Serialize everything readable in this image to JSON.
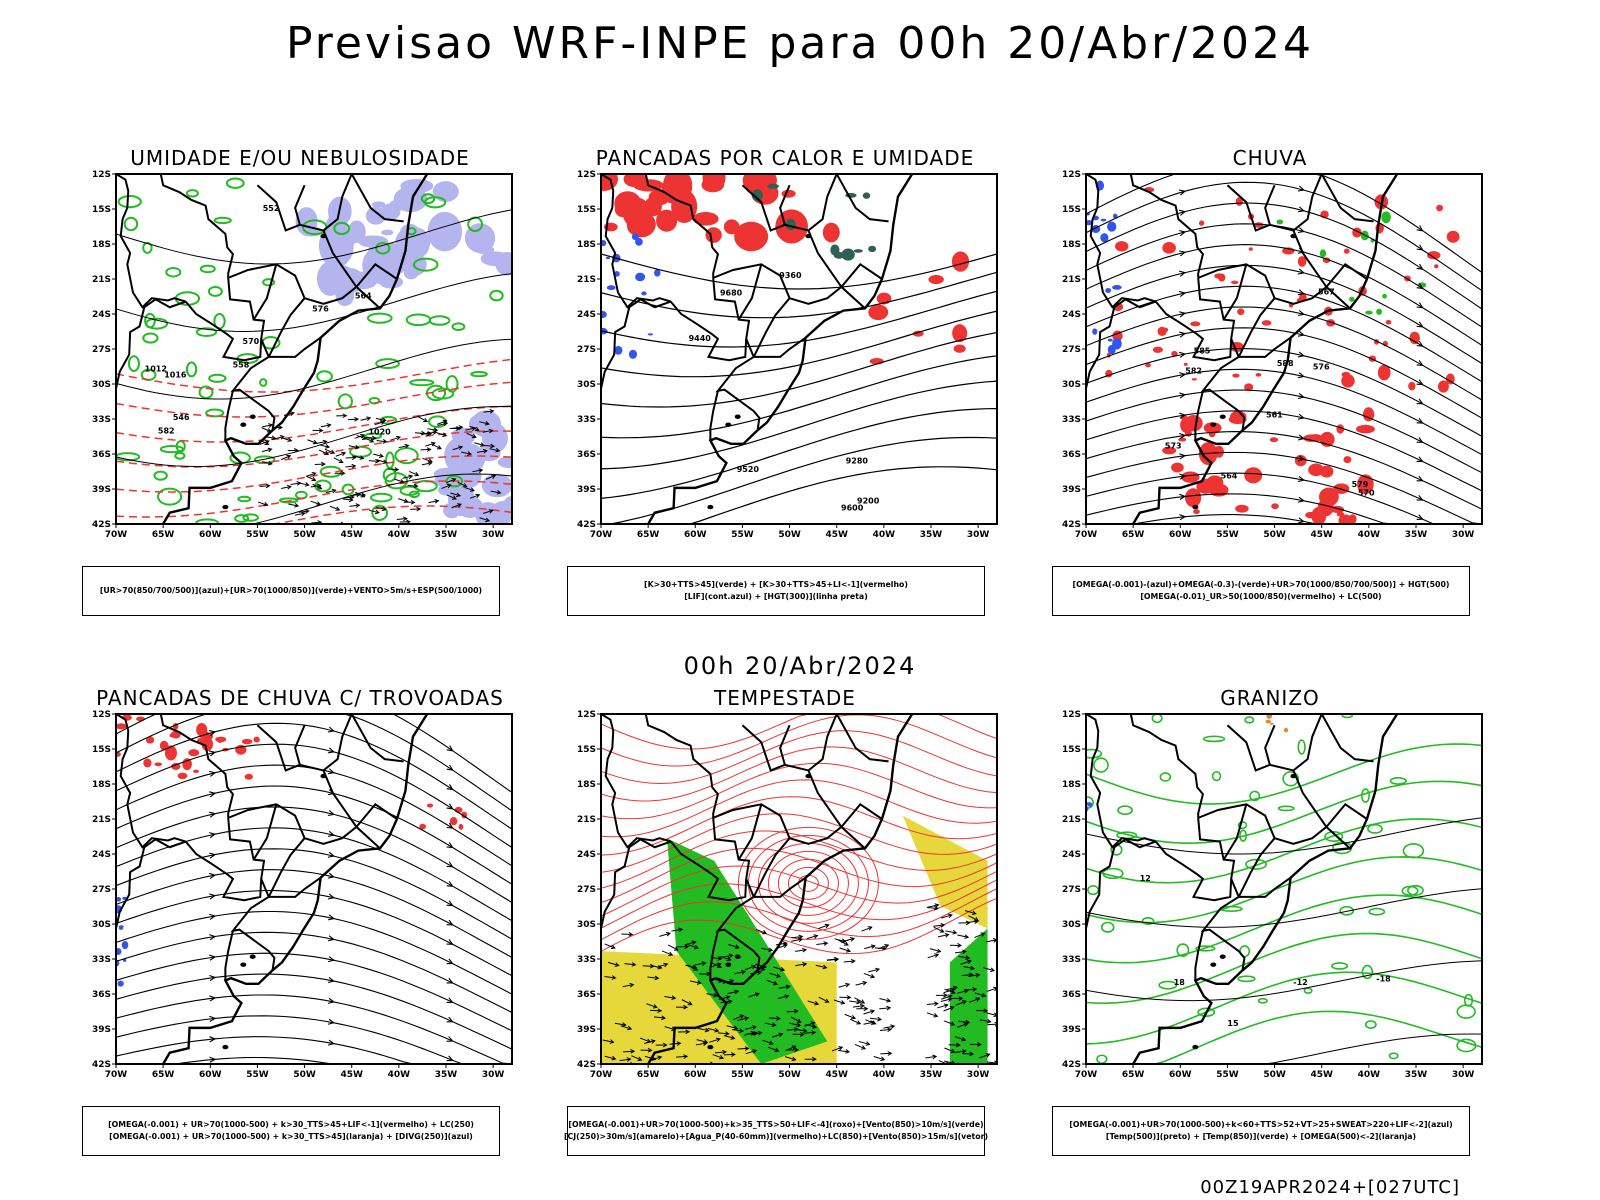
{
  "main_title": "Previsao WRF-INPE  para 00h 20/Abr/2024",
  "mid_title": "00h 20/Abr/2024",
  "footer": "00Z19APR2024+[027UTC]",
  "lat_labels": [
    "12S",
    "15S",
    "18S",
    "21S",
    "24S",
    "27S",
    "30S",
    "33S",
    "36S",
    "39S",
    "42S"
  ],
  "lon_labels": [
    "70W",
    "65W",
    "60W",
    "55W",
    "50W",
    "45W",
    "40W",
    "35W",
    "30W"
  ],
  "colors": {
    "blue": "#3355ee",
    "green": "#22bb22",
    "red": "#ee3333",
    "lavender": "#b4b4ee",
    "yellow": "#e6d83a",
    "orange": "#e08a2a",
    "darkteal": "#2f5f55"
  },
  "panels": [
    {
      "title": "UMIDADE E/OU NEBULOSIDADE",
      "legend": [
        "[UR>70(850/700/500)](azul)+[UR>70(1000/850)](verde)+VENTO>5m/s+ESP(500/1000)"
      ],
      "labels": [
        "1012",
        "1016",
        "1020",
        "570",
        "576",
        "582",
        "564",
        "558",
        "552",
        "546"
      ]
    },
    {
      "title": "PANCADAS POR CALOR E UMIDADE",
      "legend": [
        "[K>30+TTS>45](verde) + [K>30+TTS>45+LI<-1](vermelho)",
        "[LIF](cont.azul) + [HGT(300)](linha preta)"
      ],
      "labels": [
        "9680",
        "9600",
        "9520",
        "9440",
        "9360",
        "9280",
        "9200"
      ]
    },
    {
      "title": "CHUVA",
      "legend": [
        "[OMEGA(-0.001)-(azul)+OMEGA(-0.3)-(verde)+UR>70(1000/850/700/500)] + HGT(500)",
        "[OMEGA(-0.01)_UR>50(1000/850)(vermelho) + LC(500)"
      ],
      "labels": [
        "588",
        "585",
        "582",
        "579",
        "576",
        "573",
        "570",
        "567",
        "564",
        "561"
      ]
    },
    {
      "title": "PANCADAS DE CHUVA C/ TROVOADAS",
      "legend": [
        "[OMEGA(-0.001) + UR>70(1000-500) + k>30_TTS>45+LIF<-1](vermelho) + LC(250)",
        "[OMEGA(-0.001) + UR>70(1000-500) + k>30_TTS>45](laranja) + [DIVG(250)](azul)"
      ],
      "labels": []
    },
    {
      "title": "TEMPESTADE",
      "legend": [
        "[OMEGA(-0.001)+UR>70(1000-500)+k>35_TTS>50+LIF<-4](roxo)+[Vento(850)>10m/s](verde)",
        "[CJ(250)>30m/s](amarelo)+[Agua_P(40-60mm)](vermelho)+LC(850)+[Vento(850)>15m/s](vetor)"
      ],
      "labels": []
    },
    {
      "title": "GRANIZO",
      "legend": [
        "[OMEGA(-0.001)+UR>70(1000-500)+k<60+TTS>52+VT>25+SWEAT>220+LIF<-2](azul)",
        "[Temp(500)](preto) + [Temp(850)](verde) + [OMEGA(500)<-2](laranja)"
      ],
      "labels": [
        "12",
        "18",
        "-12",
        "-18",
        "15"
      ]
    }
  ]
}
